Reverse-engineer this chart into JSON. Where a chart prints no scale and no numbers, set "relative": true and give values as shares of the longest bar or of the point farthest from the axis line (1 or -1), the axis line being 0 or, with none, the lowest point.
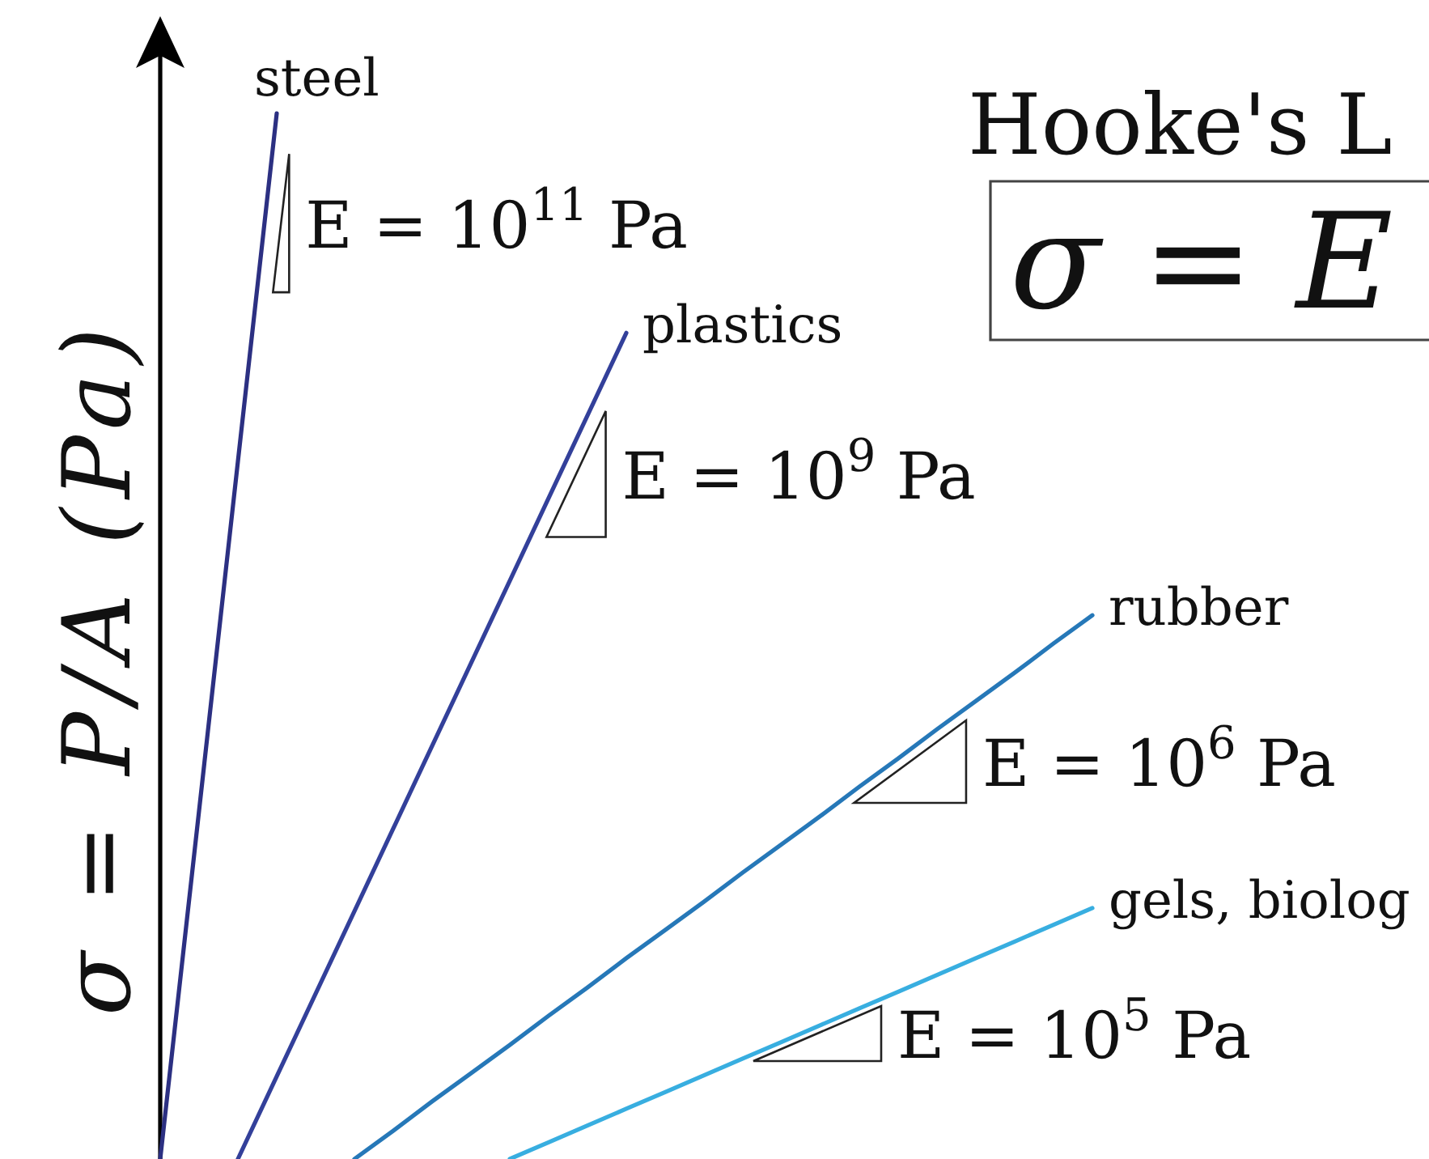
{
  "chart_data": {
    "type": "line",
    "title": "Hooke's L",
    "subtitle": "σ = E",
    "ylabel": "σ = P/A (Pa)",
    "relative": true,
    "categories": [
      null,
      null,
      null,
      null,
      null,
      null,
      null,
      null,
      null,
      null,
      null,
      null,
      null,
      null,
      null,
      null,
      null,
      null,
      null,
      null,
      null,
      null,
      null,
      null,
      null
    ],
    "series": [
      {
        "name": "steel",
        "color": "#2c3082",
        "values": [
          0,
          0.333,
          0.667,
          1,
          null,
          null,
          null,
          null,
          null,
          null,
          null,
          null,
          null,
          null,
          null,
          null,
          null,
          null,
          null,
          null,
          null,
          null,
          null,
          null,
          null
        ]
      },
      {
        "name": "plastics",
        "color": "#33409a",
        "values": [
          null,
          null,
          0,
          0.079,
          0.158,
          0.237,
          0.316,
          0.395,
          0.474,
          0.553,
          0.632,
          0.711,
          0.79,
          null,
          null,
          null,
          null,
          null,
          null,
          null,
          null,
          null,
          null,
          null,
          null
        ]
      },
      {
        "name": "rubber",
        "color": "#2678b8",
        "values": [
          null,
          null,
          null,
          null,
          null,
          0,
          0.027,
          0.055,
          0.082,
          0.109,
          0.137,
          0.164,
          0.192,
          0.219,
          0.246,
          0.274,
          0.301,
          0.328,
          0.356,
          0.383,
          0.411,
          0.438,
          0.465,
          0.493,
          0.52
        ]
      },
      {
        "name": "gels, biolog",
        "color": "#38aee0",
        "values": [
          null,
          null,
          null,
          null,
          null,
          null,
          null,
          null,
          null,
          0,
          0.016,
          0.032,
          0.048,
          0.064,
          0.08,
          0.096,
          0.112,
          0.128,
          0.144,
          0.16,
          0.176,
          0.192,
          0.208,
          0.224,
          0.24
        ]
      }
    ],
    "annotations": [
      "E = 10$^{11}$ Pa",
      "E = 10$^{9}$ Pa",
      "E = 10$^{6}$ Pa",
      "E = 10$^{5}$ Pa"
    ]
  }
}
